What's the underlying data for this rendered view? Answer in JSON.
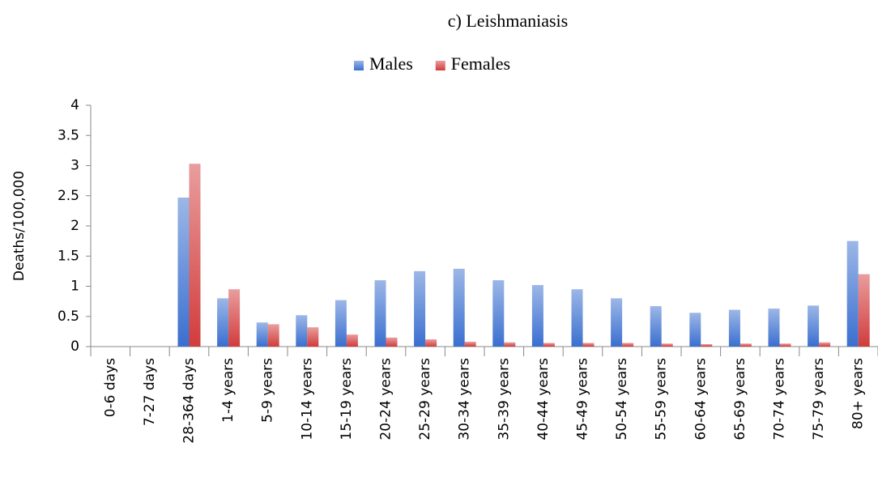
{
  "chart_data": {
    "type": "bar",
    "title": "c) Leishmaniasis",
    "ylabel": "Deaths/100,000",
    "categories": [
      "0-6 days",
      "7-27 days",
      "28-364 days",
      "1-4 years",
      "5-9 years",
      "10-14 years",
      "15-19 years",
      "20-24 years",
      "25-29 years",
      "30-34 years",
      "35-39 years",
      "40-44 years",
      "45-49 years",
      "50-54 years",
      "55-59 years",
      "60-64 years",
      "65-69 years",
      "70-74 years",
      "75-79 years",
      "80+ years"
    ],
    "series": [
      {
        "name": "Males",
        "color": "#3a6fcf",
        "values": [
          0,
          0,
          2.47,
          0.8,
          0.4,
          0.52,
          0.77,
          1.1,
          1.25,
          1.29,
          1.1,
          1.02,
          0.95,
          0.8,
          0.67,
          0.56,
          0.61,
          0.63,
          0.68,
          1.75
        ]
      },
      {
        "name": "Females",
        "color": "#d23c3c",
        "values": [
          0,
          0,
          3.03,
          0.95,
          0.37,
          0.32,
          0.2,
          0.15,
          0.12,
          0.08,
          0.07,
          0.06,
          0.06,
          0.06,
          0.05,
          0.04,
          0.05,
          0.05,
          0.07,
          1.2
        ]
      }
    ],
    "ylim": [
      0,
      4
    ],
    "yticks": [
      0,
      0.5,
      1,
      1.5,
      2,
      2.5,
      3,
      3.5,
      4
    ],
    "grid": false,
    "legend": "top"
  }
}
